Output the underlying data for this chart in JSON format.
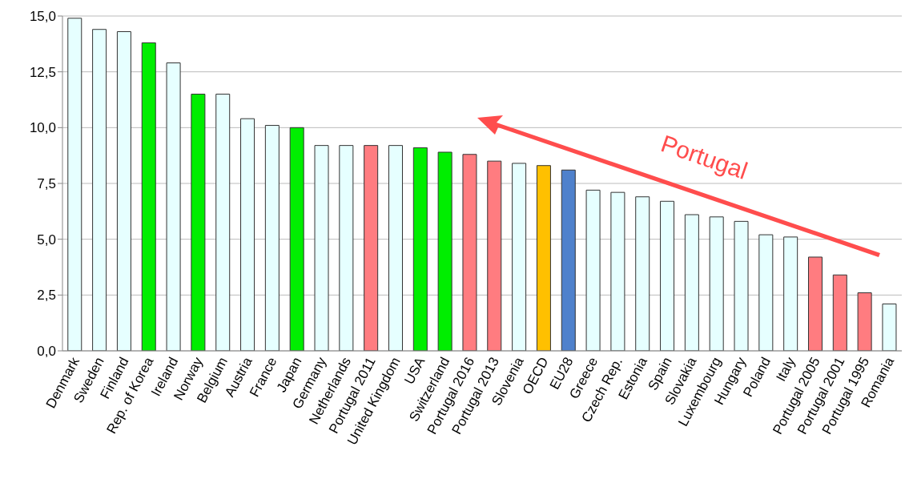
{
  "chart_data": {
    "type": "bar",
    "categories": [
      "Denmark",
      "Sweden",
      "Finland",
      "Rep. of Korea",
      "Ireland",
      "Norway",
      "Belgium",
      "Austria",
      "France",
      "Japan",
      "Germany",
      "Netherlands",
      "Portugal 2011",
      "United Kingdom",
      "USA",
      "Switzerland",
      "Portugal 2016",
      "Portugal 2013",
      "Slovenia",
      "OECD",
      "EU28",
      "Greece",
      "Czech Rep.",
      "Estonia",
      "Spain",
      "Slovakia",
      "Luxembourg",
      "Hungary",
      "Poland",
      "Italy",
      "Portugal 2005",
      "Portugal 2001",
      "Portugal 1995",
      "Romania"
    ],
    "values": [
      14.9,
      14.4,
      14.3,
      13.8,
      12.9,
      11.5,
      11.5,
      10.4,
      10.1,
      10.0,
      9.2,
      9.2,
      9.2,
      9.2,
      9.1,
      8.9,
      8.8,
      8.5,
      8.4,
      8.3,
      8.1,
      7.2,
      7.1,
      6.9,
      6.7,
      6.1,
      6.0,
      5.8,
      5.2,
      5.1,
      4.2,
      3.4,
      2.6,
      2.1
    ],
    "colors": [
      "#e6ffff",
      "#e6ffff",
      "#e6ffff",
      "#00ee00",
      "#e6ffff",
      "#00ee00",
      "#e6ffff",
      "#e6ffff",
      "#e6ffff",
      "#00ee00",
      "#e6ffff",
      "#e6ffff",
      "#ff7c80",
      "#e6ffff",
      "#00ee00",
      "#00ee00",
      "#ff7c80",
      "#ff7c80",
      "#e6ffff",
      "#ffc000",
      "#4f81cc",
      "#e6ffff",
      "#e6ffff",
      "#e6ffff",
      "#e6ffff",
      "#e6ffff",
      "#e6ffff",
      "#e6ffff",
      "#e6ffff",
      "#e6ffff",
      "#ff7c80",
      "#ff7c80",
      "#ff7c80",
      "#e6ffff"
    ],
    "ylim": [
      0,
      15
    ],
    "yticks": [
      {
        "value": 0,
        "label": "0,0"
      },
      {
        "value": 2.5,
        "label": "2,5"
      },
      {
        "value": 5,
        "label": "5,0"
      },
      {
        "value": 7.5,
        "label": "7,5"
      },
      {
        "value": 10,
        "label": "10,0"
      },
      {
        "value": 12.5,
        "label": "12,5"
      },
      {
        "value": 15,
        "label": "15,0"
      }
    ],
    "grid": "y",
    "annotations": [
      "Portugal"
    ]
  }
}
